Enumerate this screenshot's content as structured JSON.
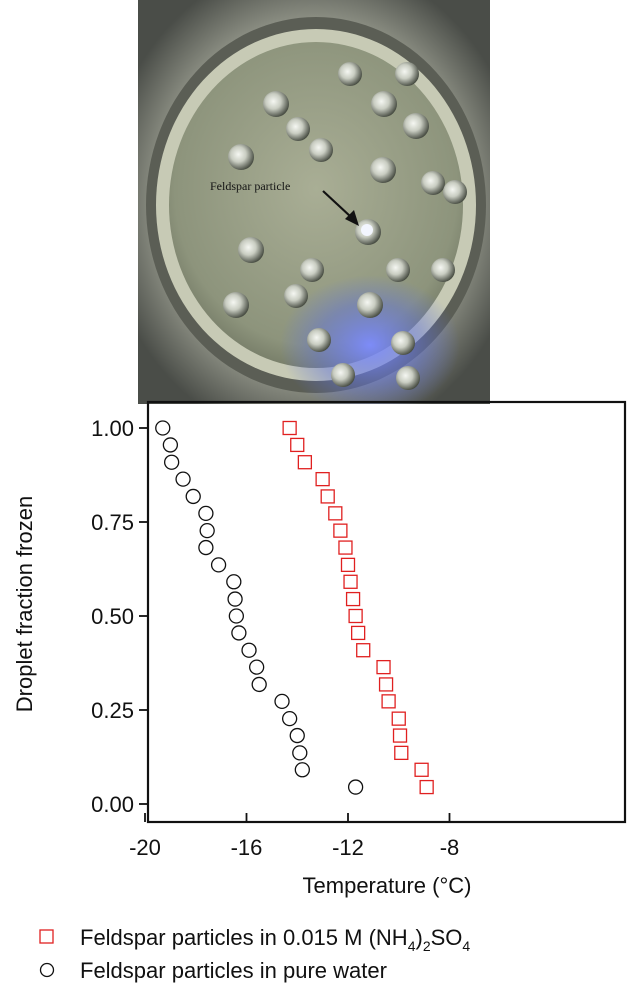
{
  "photo": {
    "annotation": "Feldspar particle"
  },
  "chart_data": {
    "type": "scatter",
    "xlabel_main": "Temperature (",
    "xlabel_unit": "°C",
    "xlabel_close": ")",
    "ylabel": "Droplet fraction frozen",
    "xlim": [
      -20,
      -6
    ],
    "ylim": [
      0,
      1.05
    ],
    "x_ticks": [
      -20,
      -16,
      -12,
      -8
    ],
    "x_tick_labels": [
      "-20",
      "-16",
      "-12",
      "-8"
    ],
    "y_ticks": [
      0,
      0.25,
      0.5,
      0.75,
      1.0
    ],
    "y_tick_labels": [
      "0.00",
      "0.25",
      "0.50",
      "0.75",
      "1.00"
    ],
    "grid": false,
    "legend_position": "bottom",
    "series": [
      {
        "marker": "square",
        "color": "#e02020",
        "points": [
          [
            -14.3,
            1.0
          ],
          [
            -14.0,
            0.955
          ],
          [
            -13.7,
            0.909
          ],
          [
            -13.0,
            0.864
          ],
          [
            -12.8,
            0.818
          ],
          [
            -12.5,
            0.773
          ],
          [
            -12.3,
            0.727
          ],
          [
            -12.1,
            0.682
          ],
          [
            -12.0,
            0.636
          ],
          [
            -11.9,
            0.591
          ],
          [
            -11.8,
            0.545
          ],
          [
            -11.7,
            0.5
          ],
          [
            -11.6,
            0.455
          ],
          [
            -11.4,
            0.409
          ],
          [
            -10.6,
            0.364
          ],
          [
            -10.5,
            0.318
          ],
          [
            -10.4,
            0.273
          ],
          [
            -10.0,
            0.227
          ],
          [
            -9.95,
            0.182
          ],
          [
            -9.9,
            0.136
          ],
          [
            -9.1,
            0.091
          ],
          [
            -8.9,
            0.045
          ]
        ]
      },
      {
        "marker": "circle",
        "color": "#111111",
        "points": [
          [
            -19.3,
            1.0
          ],
          [
            -19.0,
            0.955
          ],
          [
            -18.95,
            0.909
          ],
          [
            -18.5,
            0.864
          ],
          [
            -18.1,
            0.818
          ],
          [
            -17.6,
            0.773
          ],
          [
            -17.55,
            0.727
          ],
          [
            -17.6,
            0.682
          ],
          [
            -17.1,
            0.636
          ],
          [
            -16.5,
            0.591
          ],
          [
            -16.45,
            0.545
          ],
          [
            -16.4,
            0.5
          ],
          [
            -16.3,
            0.455
          ],
          [
            -15.9,
            0.409
          ],
          [
            -15.6,
            0.364
          ],
          [
            -15.5,
            0.318
          ],
          [
            -14.6,
            0.273
          ],
          [
            -14.3,
            0.227
          ],
          [
            -14.0,
            0.182
          ],
          [
            -13.9,
            0.136
          ],
          [
            -13.8,
            0.091
          ],
          [
            -11.7,
            0.045
          ]
        ]
      }
    ],
    "legend": [
      {
        "marker": "square",
        "color": "#e02020",
        "text_main": "Feldspar particles in 0.015 M (NH",
        "sub1": "4",
        "text_mid": ")",
        "sub2": "2",
        "text_end": "SO",
        "sub3": "4"
      },
      {
        "marker": "circle",
        "color": "#111111",
        "text_main": "Feldspar particles in pure water"
      }
    ]
  }
}
